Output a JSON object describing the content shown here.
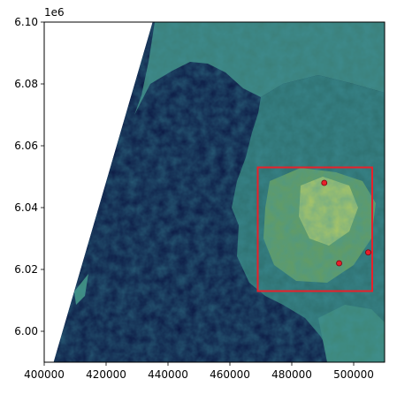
{
  "figure": {
    "offset_label": "1e6"
  },
  "chart_data": {
    "type": "heatmap",
    "title": "",
    "xlabel": "",
    "ylabel": "",
    "xlim": [
      400000,
      510000
    ],
    "ylim": [
      5990000,
      6100000
    ],
    "y_scale_factor": 1000000,
    "x_ticks": [
      {
        "value": 400000,
        "label": "400000"
      },
      {
        "value": 420000,
        "label": "420000"
      },
      {
        "value": 440000,
        "label": "440000"
      },
      {
        "value": 460000,
        "label": "460000"
      },
      {
        "value": 480000,
        "label": "480000"
      },
      {
        "value": 500000,
        "label": "500000"
      }
    ],
    "y_ticks": [
      {
        "value": 6000000,
        "label": "6.00"
      },
      {
        "value": 6020000,
        "label": "6.02"
      },
      {
        "value": 6040000,
        "label": "6.04"
      },
      {
        "value": 6060000,
        "label": "6.06"
      },
      {
        "value": 6080000,
        "label": "6.08"
      },
      {
        "value": 6100000,
        "label": "6.10"
      }
    ],
    "grid": false,
    "legend": "none",
    "raster": {
      "colormap": "dark navy to green to yellow",
      "nodata_color": "#ffffff",
      "footprint_corners": [
        [
          403000,
          5990000
        ],
        [
          435000,
          6100000
        ],
        [
          510000,
          6100000
        ],
        [
          510000,
          5990000
        ]
      ]
    },
    "bbox_rect": {
      "x0": 469000,
      "x1": 506000,
      "y0": 6013000,
      "y1": 6053000,
      "color": "#e8202a"
    },
    "points": [
      {
        "x": 490500,
        "y": 6048000
      },
      {
        "x": 495300,
        "y": 6022000
      },
      {
        "x": 504700,
        "y": 6025500
      }
    ],
    "point_color": "#e8202a"
  }
}
